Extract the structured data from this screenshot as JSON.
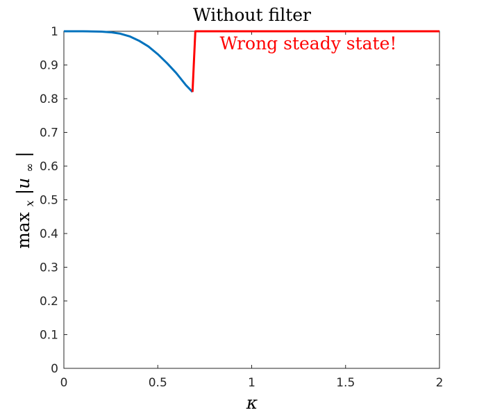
{
  "chart_data": {
    "type": "line",
    "title": "Without filter",
    "xlabel": "κ",
    "ylabel": {
      "prefix": "max",
      "subscript": "x",
      "body": " |u",
      "body_subscript": "∞",
      "suffix": "|"
    },
    "xlim": [
      0,
      2
    ],
    "ylim": [
      0,
      1
    ],
    "x_ticks": [
      0,
      0.5,
      1,
      1.5,
      2
    ],
    "x_tick_labels": [
      "0",
      "0.5",
      "1",
      "1.5",
      "2"
    ],
    "y_ticks": [
      0,
      0.1,
      0.2,
      0.3,
      0.4,
      0.5,
      0.6,
      0.7,
      0.8,
      0.9,
      1
    ],
    "y_tick_labels": [
      "0",
      "0.1",
      "0.2",
      "0.3",
      "0.4",
      "0.5",
      "0.6",
      "0.7",
      "0.8",
      "0.9",
      "1"
    ],
    "grid": false,
    "series": [
      {
        "color": "#0072BD",
        "x": [
          0,
          0.1,
          0.2,
          0.25,
          0.3,
          0.35,
          0.4,
          0.45,
          0.5,
          0.55,
          0.6,
          0.65,
          0.685
        ],
        "y": [
          1.0,
          1.0,
          0.999,
          0.997,
          0.993,
          0.985,
          0.972,
          0.955,
          0.932,
          0.905,
          0.875,
          0.84,
          0.82
        ]
      },
      {
        "color": "#FF0000",
        "x": [
          0.685,
          0.7,
          0.72,
          1.0,
          1.5,
          2.0
        ],
        "y": [
          0.82,
          1.0,
          1.0,
          1.0,
          1.0,
          1.0
        ]
      }
    ],
    "annotations": [
      {
        "text": "Wrong steady state!",
        "color": "#FF0000",
        "x": 0.83,
        "y": 0.963
      }
    ]
  }
}
